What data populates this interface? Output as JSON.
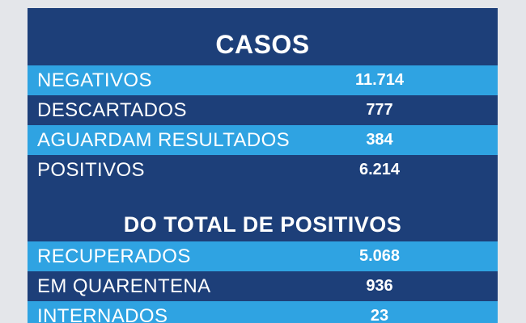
{
  "casos": {
    "title": "CASOS",
    "rows": [
      {
        "label": "NEGATIVOS",
        "value": "11.714"
      },
      {
        "label": "DESCARTADOS",
        "value": "777"
      },
      {
        "label": "AGUARDAM RESULTADOS",
        "value": "384"
      },
      {
        "label": "POSITIVOS",
        "value": "6.214"
      }
    ]
  },
  "positivos": {
    "title": "DO TOTAL DE POSITIVOS",
    "rows": [
      {
        "label": "RECUPERADOS",
        "value": "5.068"
      },
      {
        "label": "EM QUARENTENA",
        "value": "936"
      },
      {
        "label": "INTERNADOS",
        "value": "23"
      }
    ]
  },
  "colors": {
    "background": "#e4e6ea",
    "dark_blue": "#1d3f79",
    "light_blue": "#2fa3e2",
    "text": "#ffffff"
  }
}
